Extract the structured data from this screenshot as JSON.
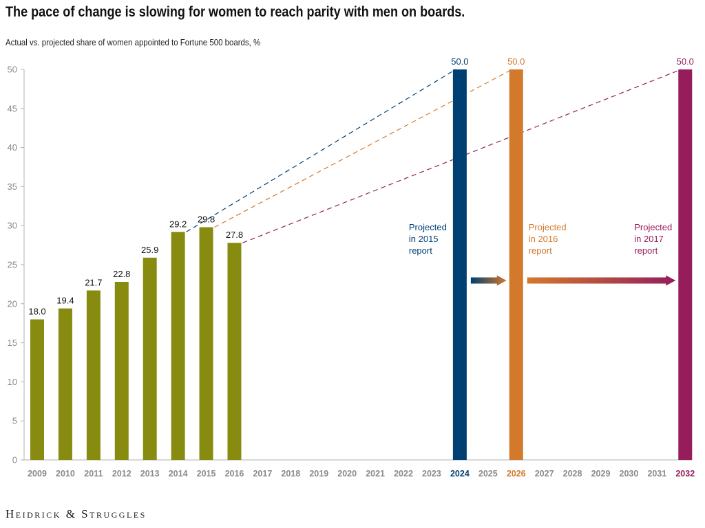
{
  "header": {
    "title": "The pace of change is slowing for women to reach parity with men on boards.",
    "subtitle": "Actual vs. projected share of women appointed to Fortune 500 boards, %"
  },
  "footer": {
    "logo_text": "Heidrick & Struggles"
  },
  "colors": {
    "actual": "#878c10",
    "p2015": "#003f72",
    "p2016": "#d2792b",
    "p2017": "#951d5b",
    "axis": "#b0b0b0",
    "tick": "#8a8a8a"
  },
  "chart_data": {
    "type": "bar",
    "title": "The pace of change is slowing for women to reach parity with men on boards.",
    "subtitle": "Actual vs. projected share of women appointed to Fortune 500 boards, %",
    "xlabel": "",
    "ylabel": "",
    "ylim": [
      0,
      50
    ],
    "yticks": [
      0,
      5,
      10,
      15,
      20,
      25,
      30,
      35,
      40,
      45,
      50
    ],
    "grid": false,
    "categories": [
      "2009",
      "2010",
      "2011",
      "2012",
      "2013",
      "2014",
      "2015",
      "2016",
      "2017",
      "2018",
      "2019",
      "2020",
      "2021",
      "2022",
      "2023",
      "2024",
      "2025",
      "2026",
      "2027",
      "2028",
      "2029",
      "2030",
      "2031",
      "2032"
    ],
    "actual": {
      "years": [
        "2009",
        "2010",
        "2011",
        "2012",
        "2013",
        "2014",
        "2015",
        "2016"
      ],
      "values": [
        18.0,
        19.4,
        21.7,
        22.8,
        25.9,
        29.2,
        29.8,
        27.8
      ],
      "labels": [
        "18.0",
        "19.4",
        "21.7",
        "22.8",
        "25.9",
        "29.2",
        "29.8",
        "27.8"
      ]
    },
    "projections": [
      {
        "key": "p2015",
        "from_year": "2014",
        "from_value": 29.2,
        "year": "2024",
        "value": 50.0,
        "label": "50.0",
        "annotation": [
          "Projected",
          "in 2015",
          "report"
        ]
      },
      {
        "key": "p2016",
        "from_year": "2015",
        "from_value": 29.8,
        "year": "2026",
        "value": 50.0,
        "label": "50.0",
        "annotation": [
          "Projected",
          "in 2016",
          "report"
        ]
      },
      {
        "key": "p2017",
        "from_year": "2016",
        "from_value": 27.8,
        "year": "2032",
        "value": 50.0,
        "label": "50.0",
        "annotation": [
          "Projected",
          "in 2017",
          "report"
        ]
      }
    ],
    "arrows": [
      {
        "from_year": "2024",
        "to_year": "2026",
        "value": 23,
        "from_color": "p2015",
        "to_color": "p2016"
      },
      {
        "from_year": "2026",
        "to_year": "2032",
        "value": 23,
        "from_color": "p2016",
        "to_color": "p2017"
      }
    ]
  }
}
